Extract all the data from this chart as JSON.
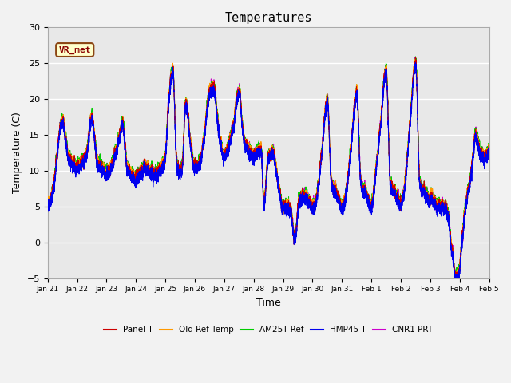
{
  "title": "Temperatures",
  "xlabel": "Time",
  "ylabel": "Temperature (C)",
  "ylim": [
    -5,
    30
  ],
  "yticks": [
    -5,
    0,
    5,
    10,
    15,
    20,
    25,
    30
  ],
  "x_tick_labels": [
    "Jan 21",
    "Jan 22",
    "Jan 23",
    "Jan 24",
    "Jan 25",
    "Jan 26",
    "Jan 27",
    "Jan 28",
    "Jan 29",
    "Jan 30",
    "Jan 31",
    "Feb 1",
    "Feb 2",
    "Feb 3",
    "Feb 4",
    "Feb 5"
  ],
  "annotation_text": "VR_met",
  "colors": {
    "Panel T": "#cc0000",
    "Old Ref Temp": "#ff9900",
    "AM25T Ref": "#00cc00",
    "HMP45 T": "#0000ee",
    "CNR1 PRT": "#cc00cc"
  },
  "bg_color": "#e8e8e8",
  "grid_color": "#ffffff",
  "fig_color": "#f2f2f2",
  "legend_labels": [
    "Panel T",
    "Old Ref Temp",
    "AM25T Ref",
    "HMP45 T",
    "CNR1 PRT"
  ]
}
